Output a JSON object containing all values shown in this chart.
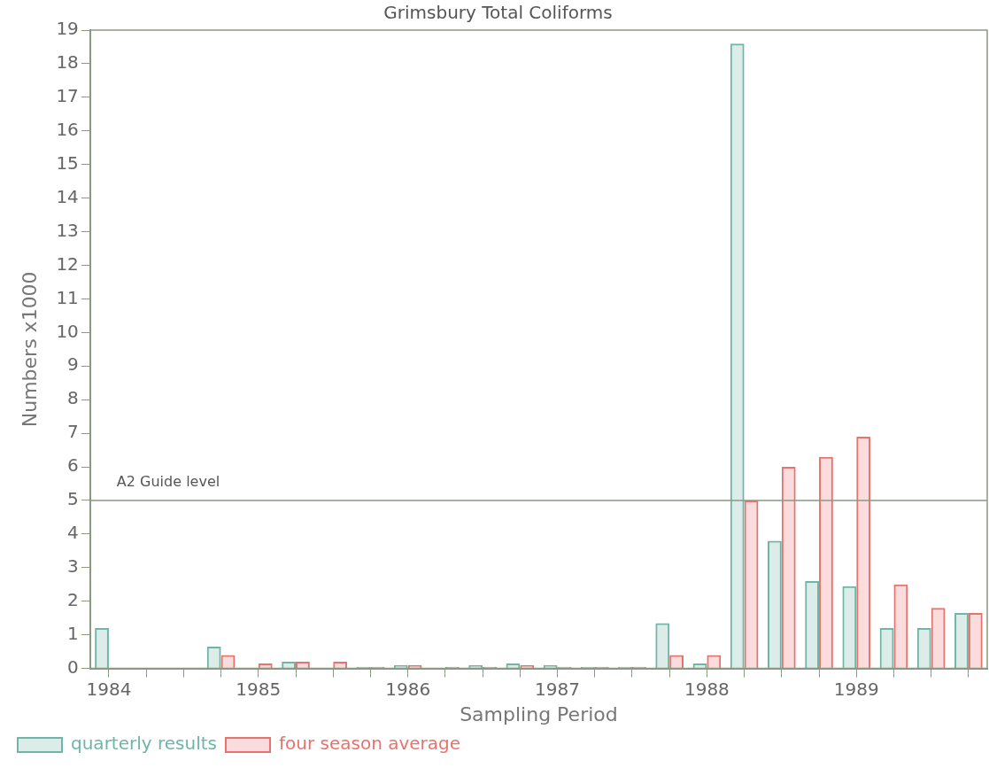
{
  "chart_data": {
    "type": "bar",
    "title": "Grimsbury Total Coliforms",
    "xlabel": "Sampling Period",
    "ylabel": "Numbers x1000",
    "categories": [
      "1984",
      null,
      null,
      null,
      "1985",
      null,
      null,
      null,
      "1986",
      null,
      null,
      null,
      "1987",
      null,
      null,
      null,
      "1988",
      null,
      null,
      null,
      "1989",
      null,
      null,
      null
    ],
    "series": [
      {
        "name": "quarterly results",
        "color": "#6fb5a8",
        "values": [
          1.2,
          null,
          null,
          0.65,
          null,
          0.2,
          null,
          0.05,
          0.1,
          null,
          0.1,
          0.15,
          0.1,
          0.05,
          0.05,
          1.35,
          0.15,
          18.6,
          3.8,
          2.6,
          2.45,
          1.2,
          1.2,
          1.65
        ]
      },
      {
        "name": "four season average",
        "color": "#e8736e",
        "values": [
          null,
          null,
          null,
          0.4,
          0.15,
          0.2,
          0.2,
          0.05,
          0.1,
          0.05,
          0.05,
          0.1,
          0.05,
          0.05,
          0.05,
          0.4,
          0.4,
          5.0,
          6.0,
          6.3,
          6.9,
          2.5,
          1.8,
          1.65
        ]
      }
    ],
    "ylim": [
      0,
      19
    ],
    "yticks": [
      0,
      1,
      2,
      3,
      4,
      5,
      6,
      7,
      8,
      9,
      10,
      11,
      12,
      13,
      14,
      15,
      16,
      17,
      18,
      19
    ],
    "ref_lines": [
      {
        "axis": "y",
        "value": 5,
        "label": "A2 Guide level",
        "color": "#8a9a80"
      }
    ],
    "grid": false,
    "legend": "bottom"
  }
}
